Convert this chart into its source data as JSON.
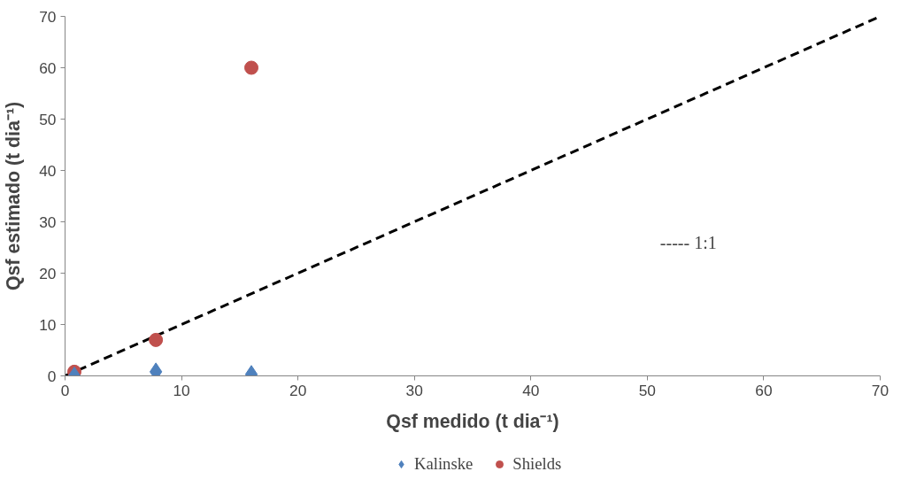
{
  "chart_data": {
    "type": "scatter",
    "xlabel": "Qsf medido (t dia⁻¹)",
    "ylabel": "Qsf estimado (t dia⁻¹)",
    "xlim": [
      0,
      70
    ],
    "ylim": [
      0,
      70
    ],
    "xticks": [
      0,
      10,
      20,
      30,
      40,
      50,
      60,
      70
    ],
    "yticks": [
      0,
      10,
      20,
      30,
      40,
      50,
      60,
      70
    ],
    "legend": "bottom",
    "annotations": [
      "----- 1:1"
    ],
    "series": [
      {
        "name": "Kalinske",
        "color": "#4f81bd",
        "marker": "diamond",
        "x": [
          0.8,
          7.8,
          16
        ],
        "values": [
          0,
          0.8,
          0.3
        ]
      },
      {
        "name": "Shields",
        "color": "#c0504d",
        "marker": "circle",
        "x": [
          0.8,
          7.8,
          16
        ],
        "values": [
          0.8,
          7,
          60
        ]
      },
      {
        "type": "line",
        "color": "#000000",
        "line_style": "dashed",
        "marker": "none",
        "x": [
          0,
          70
        ],
        "values": [
          0,
          70
        ]
      }
    ]
  }
}
